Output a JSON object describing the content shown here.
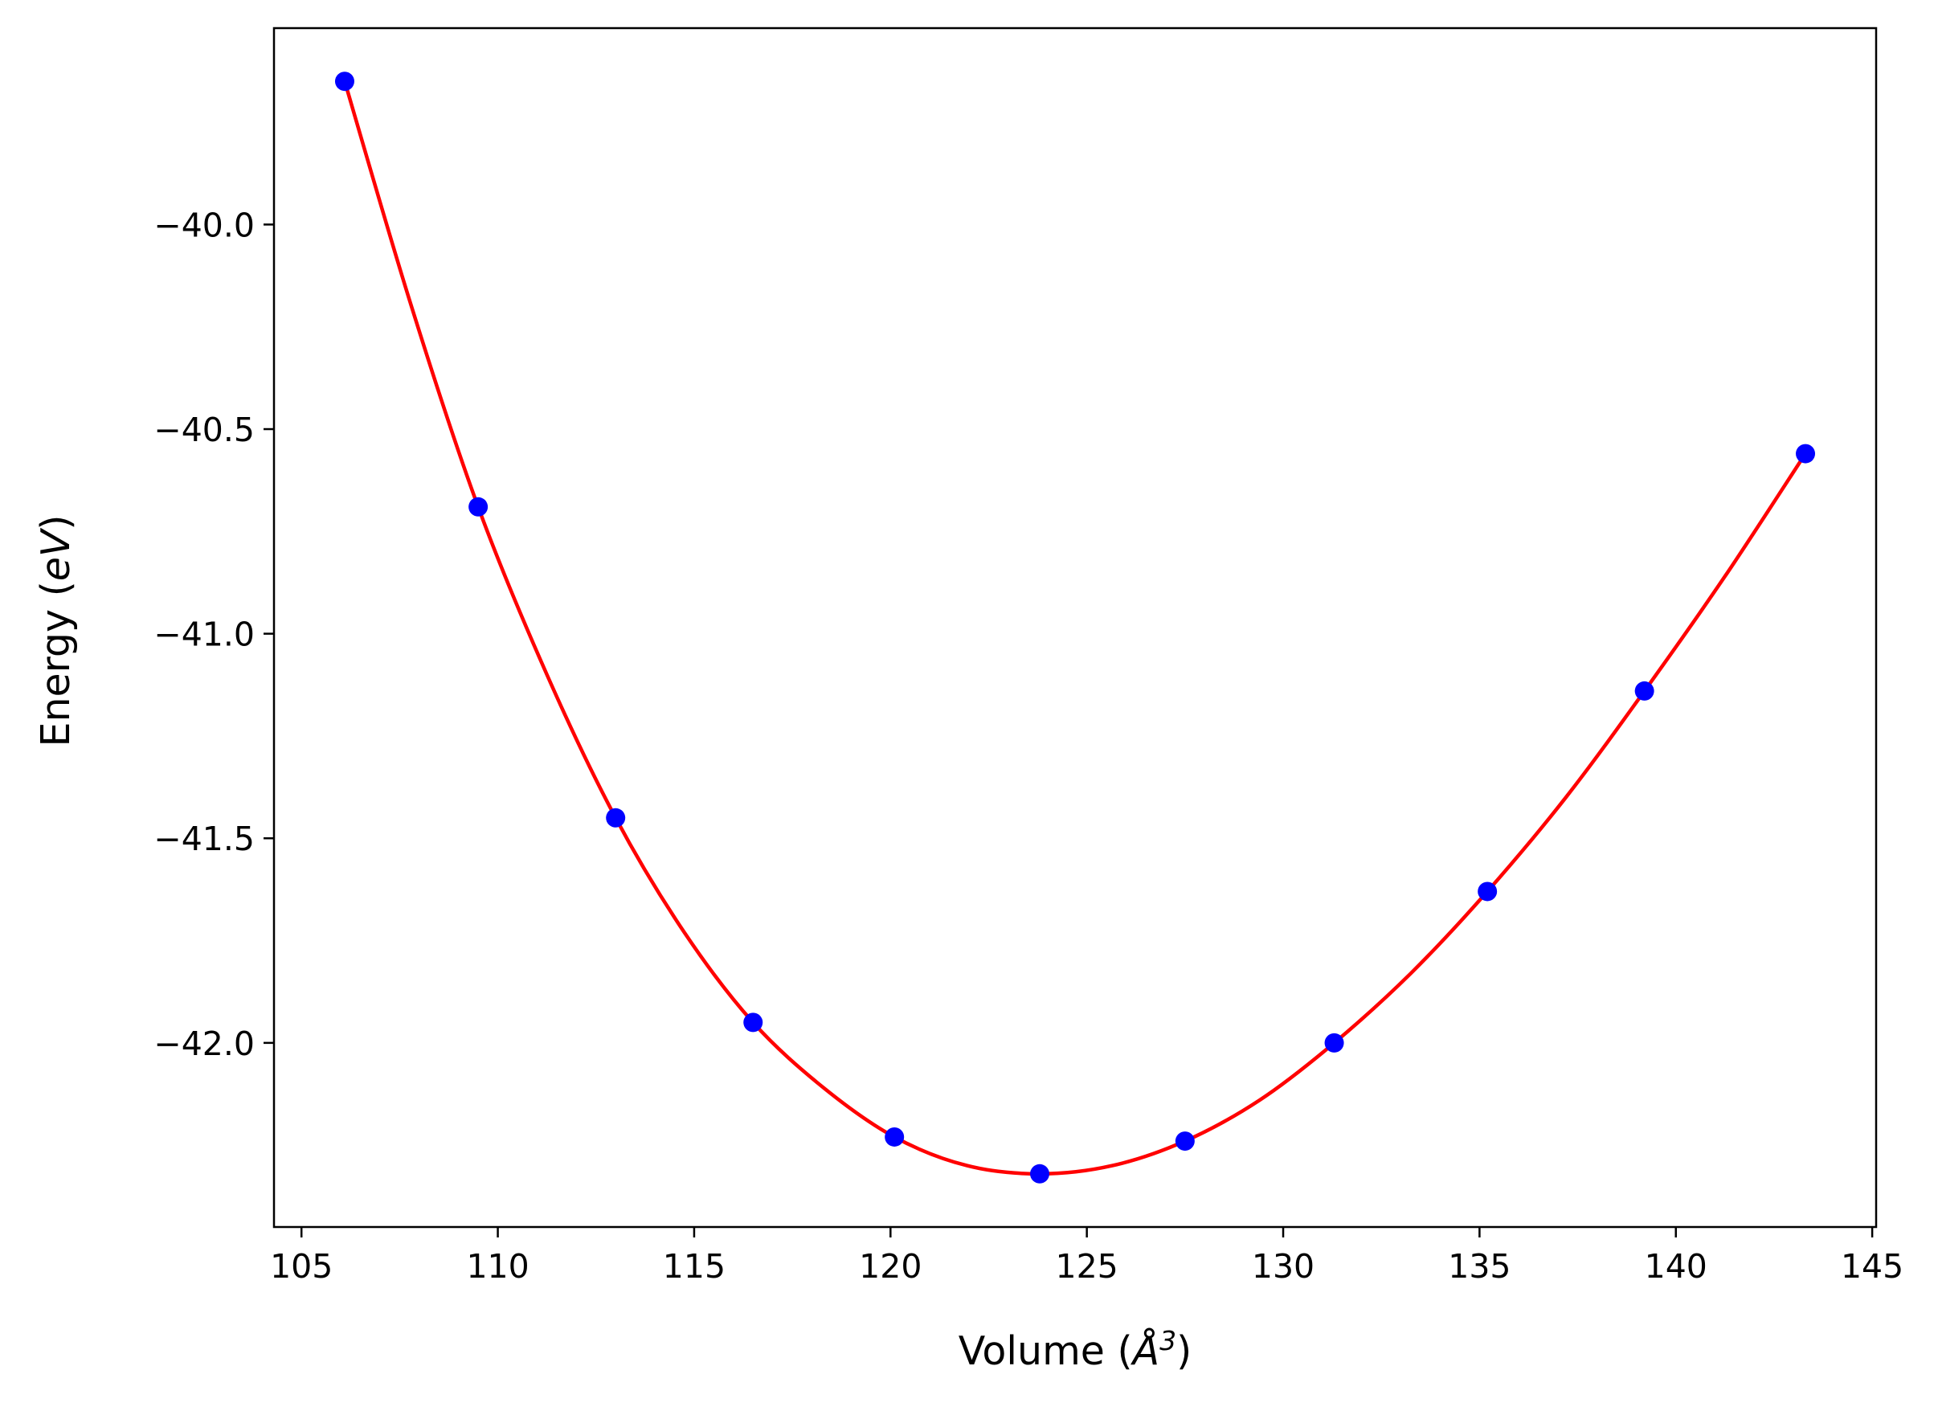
{
  "chart_data": {
    "type": "scatter",
    "title": "",
    "xlabel": "Volume (Å³)",
    "xlabel_parts": {
      "prefix": "Volume (",
      "unit": "Å",
      "exponent": "3",
      "suffix": ")"
    },
    "ylabel": "Energy (eV)",
    "ylabel_parts": {
      "prefix": "Energy (",
      "unit": "eV",
      "suffix": ")"
    },
    "xlim": [
      104.3,
      145.1
    ],
    "ylim": [
      -42.45,
      -39.52
    ],
    "x_ticks": [
      {
        "value": 105,
        "label": "105"
      },
      {
        "value": 110,
        "label": "110"
      },
      {
        "value": 115,
        "label": "115"
      },
      {
        "value": 120,
        "label": "120"
      },
      {
        "value": 125,
        "label": "125"
      },
      {
        "value": 130,
        "label": "130"
      },
      {
        "value": 135,
        "label": "135"
      },
      {
        "value": 140,
        "label": "140"
      },
      {
        "value": 145,
        "label": "145"
      }
    ],
    "y_ticks": [
      {
        "value": -40.0,
        "label": "−40.0"
      },
      {
        "value": -40.5,
        "label": "−40.5"
      },
      {
        "value": -41.0,
        "label": "−41.0"
      },
      {
        "value": -41.5,
        "label": "−41.5"
      },
      {
        "value": -42.0,
        "label": "−42.0"
      }
    ],
    "grid": false,
    "series": [
      {
        "kind": "markers",
        "color": "#0000ff",
        "x": [
          106.1,
          109.5,
          113.0,
          116.5,
          120.1,
          123.8,
          127.5,
          131.3,
          135.2,
          139.2,
          143.3
        ],
        "y": [
          -39.65,
          -40.69,
          -41.45,
          -41.95,
          -42.23,
          -42.32,
          -42.24,
          -42.0,
          -41.63,
          -41.14,
          -40.56
        ]
      },
      {
        "kind": "fit-line",
        "color": "#ff0000",
        "x": [
          106.1,
          107.8,
          109.5,
          111.25,
          113.0,
          114.75,
          116.5,
          118.3,
          120.1,
          121.95,
          123.8,
          125.65,
          127.5,
          129.4,
          131.3,
          133.25,
          135.2,
          137.2,
          139.2,
          141.25,
          143.3
        ],
        "y": [
          -39.65,
          -40.2,
          -40.69,
          -41.1,
          -41.45,
          -41.73,
          -41.95,
          -42.11,
          -42.23,
          -42.3,
          -42.32,
          -42.3,
          -42.24,
          -42.14,
          -42.0,
          -41.83,
          -41.63,
          -41.4,
          -41.14,
          -40.86,
          -40.56
        ]
      }
    ]
  }
}
